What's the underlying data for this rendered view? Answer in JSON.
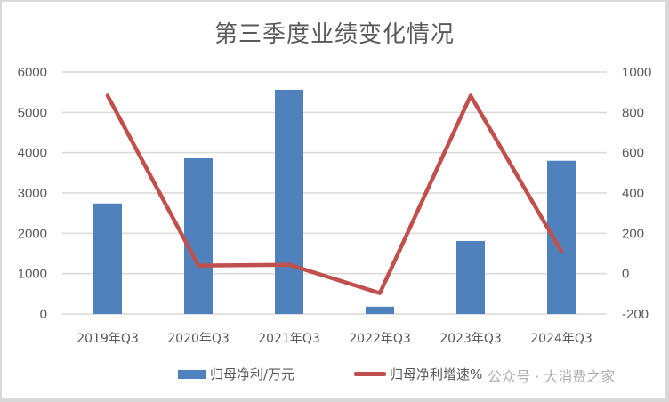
{
  "chart_data": {
    "type": "bar",
    "title": "第三季度业绩变化情况",
    "categories": [
      "2019年Q3",
      "2020年Q3",
      "2021年Q3",
      "2022年Q3",
      "2023年Q3",
      "2024年Q3"
    ],
    "series": [
      {
        "name": "归母净利/万元",
        "type": "bar",
        "axis": "left",
        "color": "#4f81bd",
        "values": [
          2740,
          3860,
          5560,
          180,
          1810,
          3800
        ]
      },
      {
        "name": "归母净利增速%",
        "type": "line",
        "axis": "right",
        "color": "#c0504d",
        "values": [
          883,
          40,
          44,
          -97,
          883,
          110
        ]
      }
    ],
    "left_axis": {
      "ylim": [
        0,
        6000
      ],
      "ticks": [
        "6000",
        "5000",
        "4000",
        "3000",
        "2000",
        "1000",
        "0"
      ]
    },
    "right_axis": {
      "ylim": [
        -200,
        1000
      ],
      "ticks": [
        "1000",
        "800",
        "600",
        "400",
        "200",
        "0",
        "-200"
      ]
    },
    "xlabel": "",
    "ylabel": "",
    "grid": true,
    "legend_position": "bottom"
  },
  "legend": {
    "bar_label": "归母净利/万元",
    "line_label": "归母净利增速%"
  },
  "watermark": "公众号 · 大消费之家"
}
